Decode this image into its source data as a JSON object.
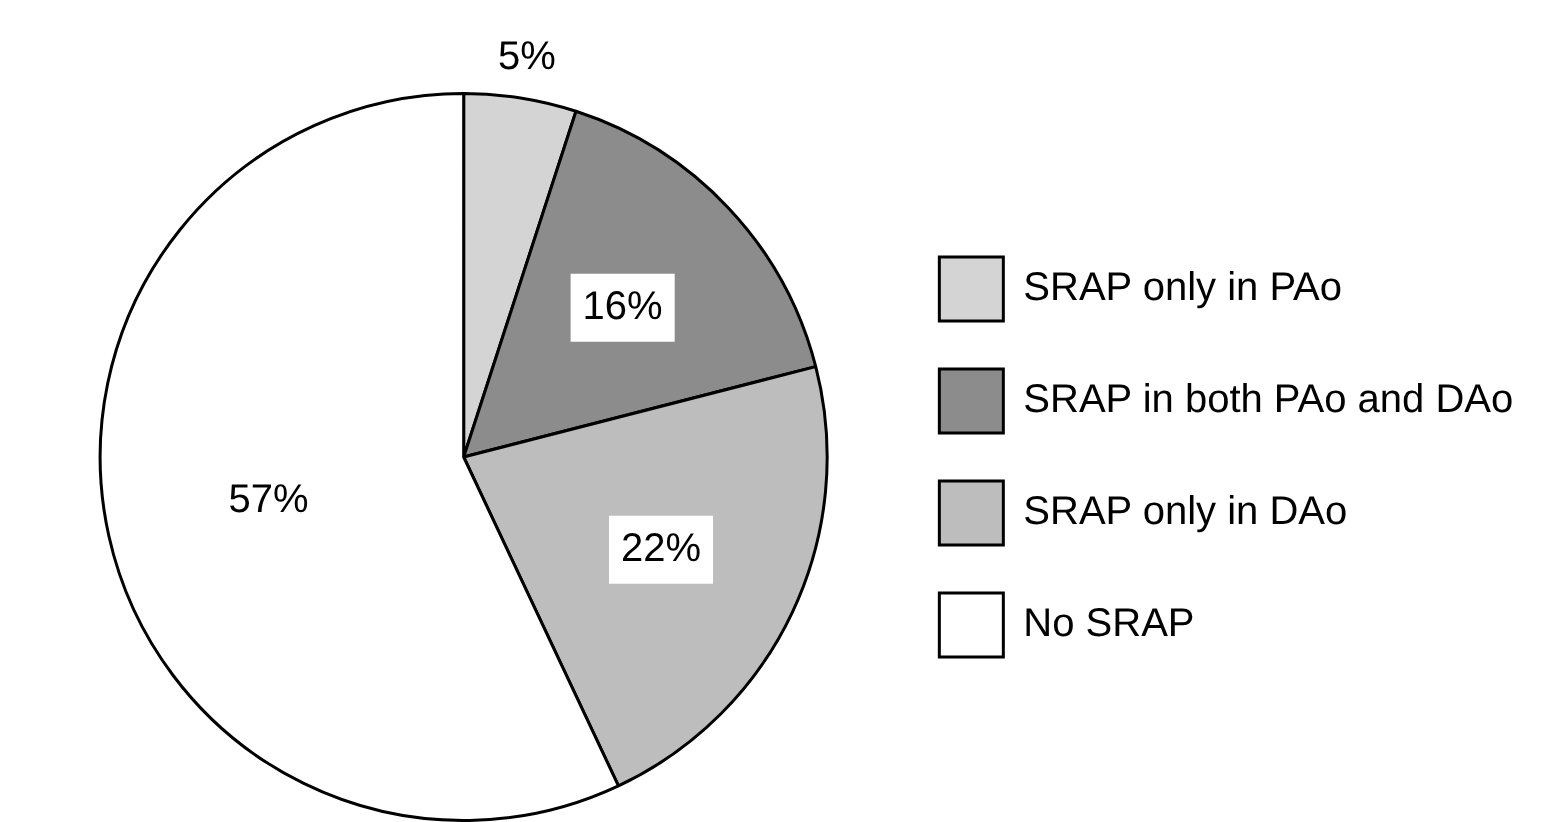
{
  "chart_data": {
    "type": "pie",
    "categories": [
      "SRAP only in PAo",
      "SRAP in both PAo and DAo",
      "SRAP only in DAo",
      "No SRAP"
    ],
    "values": [
      5,
      16,
      22,
      57
    ],
    "colors": [
      "#d4d4d4",
      "#8c8c8c",
      "#bdbdbd",
      "#ffffff"
    ],
    "value_labels": [
      "5%",
      "16%",
      "22%",
      "57%"
    ],
    "legend": "right"
  }
}
